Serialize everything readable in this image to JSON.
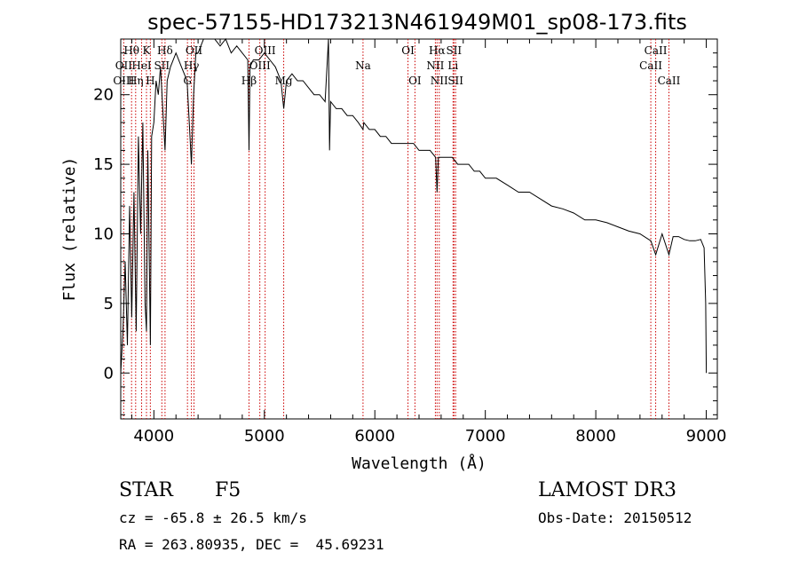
{
  "chart_data": {
    "type": "line",
    "title": "spec-57155-HD173213N461949M01_sp08-173.fits",
    "xlabel": "Wavelength (Å)",
    "ylabel": "Flux (relative)",
    "xlim": [
      3700,
      9100
    ],
    "ylim": [
      -3.3,
      24.0
    ],
    "xticks": [
      4000,
      5000,
      6000,
      7000,
      8000,
      9000
    ],
    "yticks": [
      0,
      5,
      10,
      15,
      20
    ],
    "grid": false,
    "series": [
      {
        "name": "spectrum",
        "x": [
          3700,
          3720,
          3740,
          3760,
          3780,
          3800,
          3820,
          3840,
          3860,
          3880,
          3900,
          3920,
          3933,
          3945,
          3968,
          3980,
          4000,
          4020,
          4040,
          4060,
          4101,
          4120,
          4150,
          4200,
          4250,
          4300,
          4320,
          4340,
          4360,
          4380,
          4400,
          4450,
          4500,
          4550,
          4600,
          4650,
          4700,
          4750,
          4800,
          4850,
          4861,
          4870,
          4900,
          4950,
          5000,
          5050,
          5100,
          5150,
          5175,
          5200,
          5250,
          5300,
          5350,
          5400,
          5450,
          5500,
          5550,
          5580,
          5590,
          5600,
          5650,
          5700,
          5750,
          5800,
          5850,
          5893,
          5900,
          5950,
          6000,
          6050,
          6100,
          6150,
          6200,
          6250,
          6300,
          6350,
          6400,
          6450,
          6500,
          6550,
          6563,
          6575,
          6600,
          6650,
          6700,
          6750,
          6800,
          6850,
          6900,
          6950,
          7000,
          7100,
          7200,
          7300,
          7400,
          7500,
          7600,
          7700,
          7800,
          7900,
          8000,
          8100,
          8200,
          8300,
          8400,
          8498,
          8542,
          8600,
          8662,
          8700,
          8750,
          8800,
          8850,
          8900,
          8950,
          8980,
          8995,
          9000
        ],
        "y": [
          0,
          3,
          8,
          2,
          12,
          4,
          13,
          3,
          17,
          10,
          18,
          5,
          3,
          16,
          2,
          17,
          18,
          21,
          20,
          22,
          16,
          21,
          22,
          23,
          22,
          21,
          18,
          15,
          20,
          23,
          23,
          24,
          24,
          24,
          23.5,
          24,
          23,
          23.5,
          23,
          22.5,
          16,
          22,
          22.5,
          22.5,
          23,
          22.5,
          22,
          21,
          19,
          21,
          21.5,
          21,
          21,
          20.5,
          20,
          20,
          19.5,
          24,
          16,
          19.5,
          19,
          19,
          18.5,
          18.5,
          18,
          17.5,
          18,
          17.5,
          17.5,
          17,
          17,
          16.5,
          16.5,
          16.5,
          16.5,
          16.5,
          16,
          16,
          16,
          15.5,
          13,
          15.5,
          15.5,
          15.5,
          15.5,
          15,
          15,
          15,
          14.5,
          14.5,
          14,
          14,
          13.5,
          13,
          13,
          12.5,
          12,
          11.8,
          11.5,
          11,
          11,
          10.8,
          10.5,
          10.2,
          10,
          9.5,
          8.5,
          10,
          8.5,
          9.8,
          9.8,
          9.6,
          9.5,
          9.5,
          9.6,
          9,
          5,
          0
        ]
      }
    ],
    "lines": [
      {
        "name": "OII",
        "wavelength": 3727
      },
      {
        "name": "Hθ",
        "wavelength": 3798
      },
      {
        "name": "Hη",
        "wavelength": 3835
      },
      {
        "name": "HeI",
        "wavelength": 3889
      },
      {
        "name": "K",
        "wavelength": 3933
      },
      {
        "name": "H",
        "wavelength": 3968
      },
      {
        "name": "Hδ",
        "wavelength": 4101
      },
      {
        "name": "SII",
        "wavelength": 4072
      },
      {
        "name": "G",
        "wavelength": 4304
      },
      {
        "name": "Hγ",
        "wavelength": 4340
      },
      {
        "name": "OIII",
        "wavelength": 4363
      },
      {
        "name": "Hβ",
        "wavelength": 4861
      },
      {
        "name": "OIII",
        "wavelength": 4959
      },
      {
        "name": "OIII",
        "wavelength": 5007
      },
      {
        "name": "Mg",
        "wavelength": 5175
      },
      {
        "name": "Na",
        "wavelength": 5893
      },
      {
        "name": "OI",
        "wavelength": 6300
      },
      {
        "name": "OI",
        "wavelength": 6363
      },
      {
        "name": "NII",
        "wavelength": 6548
      },
      {
        "name": "Hα",
        "wavelength": 6563
      },
      {
        "name": "NII",
        "wavelength": 6583
      },
      {
        "name": "Li",
        "wavelength": 6708
      },
      {
        "name": "SII",
        "wavelength": 6716
      },
      {
        "name": "SII",
        "wavelength": 6731
      },
      {
        "name": "CaII",
        "wavelength": 8498
      },
      {
        "name": "CaII",
        "wavelength": 8542
      },
      {
        "name": "CaII",
        "wavelength": 8662
      }
    ],
    "line_labels_row1": [
      "Hθ",
      "K",
      "Hδ",
      "OII",
      "OIII",
      "OI",
      "Hα",
      "SII",
      "CaII"
    ],
    "line_labels_row2": [
      "OII",
      "HeI",
      "SII",
      "Hγ",
      "OIII",
      "Na",
      "NII",
      "Li",
      "CaII"
    ],
    "line_labels_row3": [
      "OIII",
      "Hη",
      "H",
      "G",
      "Hβ",
      "Mg",
      "OI",
      "NII",
      "SII",
      "CaII"
    ]
  },
  "info": {
    "object_class": "STAR",
    "subclass": "F5",
    "survey": "LAMOST DR3",
    "redshift": "cz = -65.8 ± 26.5 km/s",
    "obs_date": "Obs-Date: 20150512",
    "coords": "RA = 263.80935, DEC =  45.69231"
  }
}
